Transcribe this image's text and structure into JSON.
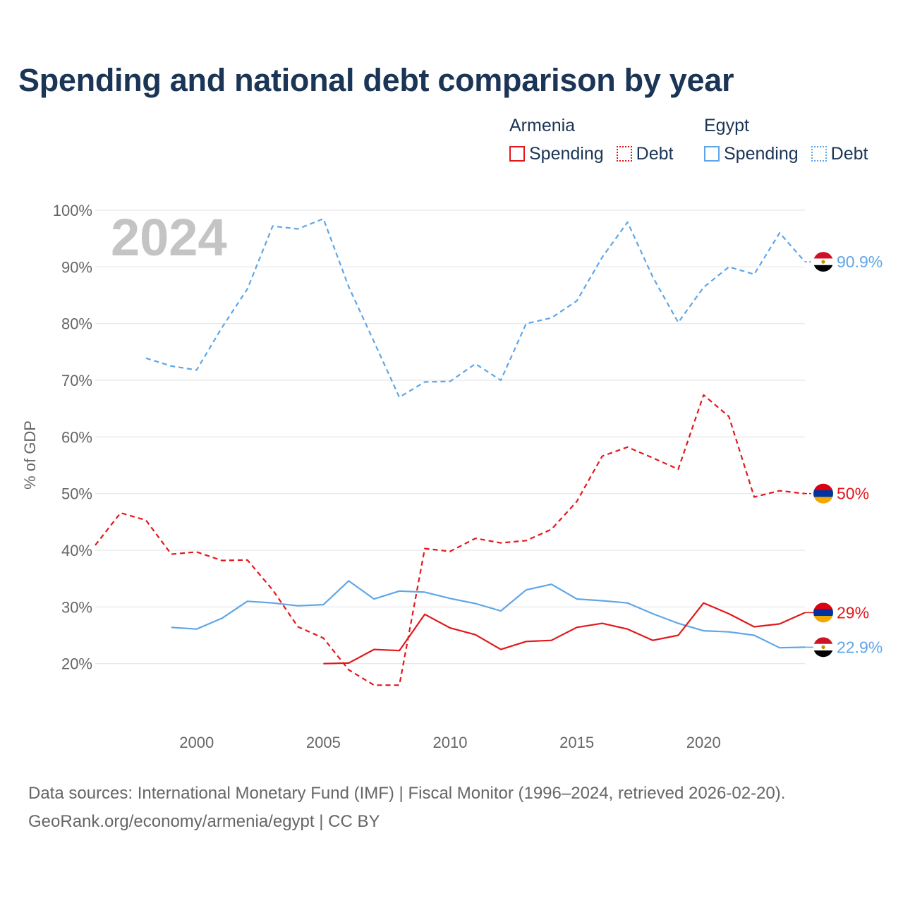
{
  "title": "Spending and national debt comparison by year",
  "legend": {
    "armenia": {
      "country": "Armenia",
      "spending": "Spending",
      "debt": "Debt"
    },
    "egypt": {
      "country": "Egypt",
      "spending": "Spending",
      "debt": "Debt"
    }
  },
  "colors": {
    "armenia": "#e3171b",
    "egypt": "#5fa6e6",
    "title": "#1b3556"
  },
  "footer": {
    "line1": "Data sources: International Monetary Fund (IMF) | Fiscal Monitor (1996–2024, retrieved 2026-02-20).",
    "line2": "GeoRank.org/economy/armenia/egypt | CC BY"
  },
  "chart_data": {
    "type": "line",
    "title": "Spending and national debt comparison by year",
    "xlabel": "",
    "ylabel": "% of GDP",
    "xlim": [
      1996,
      2024
    ],
    "ylim": [
      10,
      100
    ],
    "x_ticks": [
      2000,
      2005,
      2010,
      2015,
      2020
    ],
    "y_ticks": [
      {
        "value": 20,
        "label": "20%"
      },
      {
        "value": 30,
        "label": "30%"
      },
      {
        "value": 40,
        "label": "40%"
      },
      {
        "value": 50,
        "label": "50%"
      },
      {
        "value": 60,
        "label": "60%"
      },
      {
        "value": 70,
        "label": "70%"
      },
      {
        "value": 80,
        "label": "80%"
      },
      {
        "value": 90,
        "label": "90%"
      },
      {
        "value": 100,
        "label": "100%"
      }
    ],
    "watermark_year": "2024",
    "series": [
      {
        "name": "Egypt Debt",
        "country": "egypt",
        "style": "dashed",
        "color": "#5fa6e6",
        "end_label": "90.9%",
        "points": [
          [
            1998,
            73.9
          ],
          [
            1999,
            72.5
          ],
          [
            2000,
            71.8
          ],
          [
            2001,
            79.3
          ],
          [
            2002,
            86.1
          ],
          [
            2003,
            97.2
          ],
          [
            2004,
            96.7
          ],
          [
            2005,
            98.5
          ],
          [
            2006,
            86.5
          ],
          [
            2007,
            76.8
          ],
          [
            2008,
            67.0
          ],
          [
            2009,
            69.7
          ],
          [
            2010,
            69.8
          ],
          [
            2011,
            72.9
          ],
          [
            2012,
            70.0
          ],
          [
            2013,
            80.0
          ],
          [
            2014,
            81.0
          ],
          [
            2015,
            84.0
          ],
          [
            2016,
            91.7
          ],
          [
            2017,
            97.9
          ],
          [
            2018,
            88.2
          ],
          [
            2019,
            80.2
          ],
          [
            2020,
            86.4
          ],
          [
            2021,
            90.0
          ],
          [
            2022,
            88.7
          ],
          [
            2023,
            96.0
          ],
          [
            2024,
            90.9
          ]
        ]
      },
      {
        "name": "Armenia Debt",
        "country": "armenia",
        "style": "dashed",
        "color": "#e3171b",
        "end_label": "50%",
        "points": [
          [
            1996,
            40.9
          ],
          [
            1997,
            46.6
          ],
          [
            1998,
            45.3
          ],
          [
            1999,
            39.3
          ],
          [
            2000,
            39.7
          ],
          [
            2001,
            38.2
          ],
          [
            2002,
            38.3
          ],
          [
            2003,
            33.0
          ],
          [
            2004,
            26.5
          ],
          [
            2005,
            24.5
          ],
          [
            2006,
            18.9
          ],
          [
            2007,
            16.2
          ],
          [
            2008,
            16.2
          ],
          [
            2009,
            40.3
          ],
          [
            2010,
            39.8
          ],
          [
            2011,
            42.1
          ],
          [
            2012,
            41.3
          ],
          [
            2013,
            41.7
          ],
          [
            2014,
            43.7
          ],
          [
            2015,
            48.6
          ],
          [
            2016,
            56.6
          ],
          [
            2017,
            58.2
          ],
          [
            2018,
            56.3
          ],
          [
            2019,
            54.3
          ],
          [
            2020,
            67.4
          ],
          [
            2021,
            63.6
          ],
          [
            2022,
            49.4
          ],
          [
            2023,
            50.5
          ],
          [
            2024,
            50.0
          ]
        ]
      },
      {
        "name": "Egypt Spending",
        "country": "egypt",
        "style": "solid",
        "color": "#5fa6e6",
        "end_label": "22.9%",
        "points": [
          [
            1999,
            26.4
          ],
          [
            2000,
            26.1
          ],
          [
            2001,
            28.0
          ],
          [
            2002,
            31.0
          ],
          [
            2003,
            30.7
          ],
          [
            2004,
            30.2
          ],
          [
            2005,
            30.4
          ],
          [
            2006,
            34.6
          ],
          [
            2007,
            31.4
          ],
          [
            2008,
            32.8
          ],
          [
            2009,
            32.6
          ],
          [
            2010,
            31.5
          ],
          [
            2011,
            30.6
          ],
          [
            2012,
            29.3
          ],
          [
            2013,
            33.0
          ],
          [
            2014,
            34.0
          ],
          [
            2015,
            31.4
          ],
          [
            2016,
            31.1
          ],
          [
            2017,
            30.7
          ],
          [
            2018,
            28.8
          ],
          [
            2019,
            27.1
          ],
          [
            2020,
            25.8
          ],
          [
            2021,
            25.6
          ],
          [
            2022,
            25.0
          ],
          [
            2023,
            22.8
          ],
          [
            2024,
            22.9
          ]
        ]
      },
      {
        "name": "Armenia Spending",
        "country": "armenia",
        "style": "solid",
        "color": "#e3171b",
        "end_label": "29%",
        "points": [
          [
            2005,
            20.0
          ],
          [
            2006,
            20.1
          ],
          [
            2007,
            22.5
          ],
          [
            2008,
            22.3
          ],
          [
            2009,
            28.7
          ],
          [
            2010,
            26.3
          ],
          [
            2011,
            25.1
          ],
          [
            2012,
            22.5
          ],
          [
            2013,
            23.9
          ],
          [
            2014,
            24.1
          ],
          [
            2015,
            26.4
          ],
          [
            2016,
            27.1
          ],
          [
            2017,
            26.1
          ],
          [
            2018,
            24.1
          ],
          [
            2019,
            25.0
          ],
          [
            2020,
            30.7
          ],
          [
            2021,
            28.8
          ],
          [
            2022,
            26.5
          ],
          [
            2023,
            27.0
          ],
          [
            2024,
            29.0
          ]
        ]
      }
    ]
  }
}
